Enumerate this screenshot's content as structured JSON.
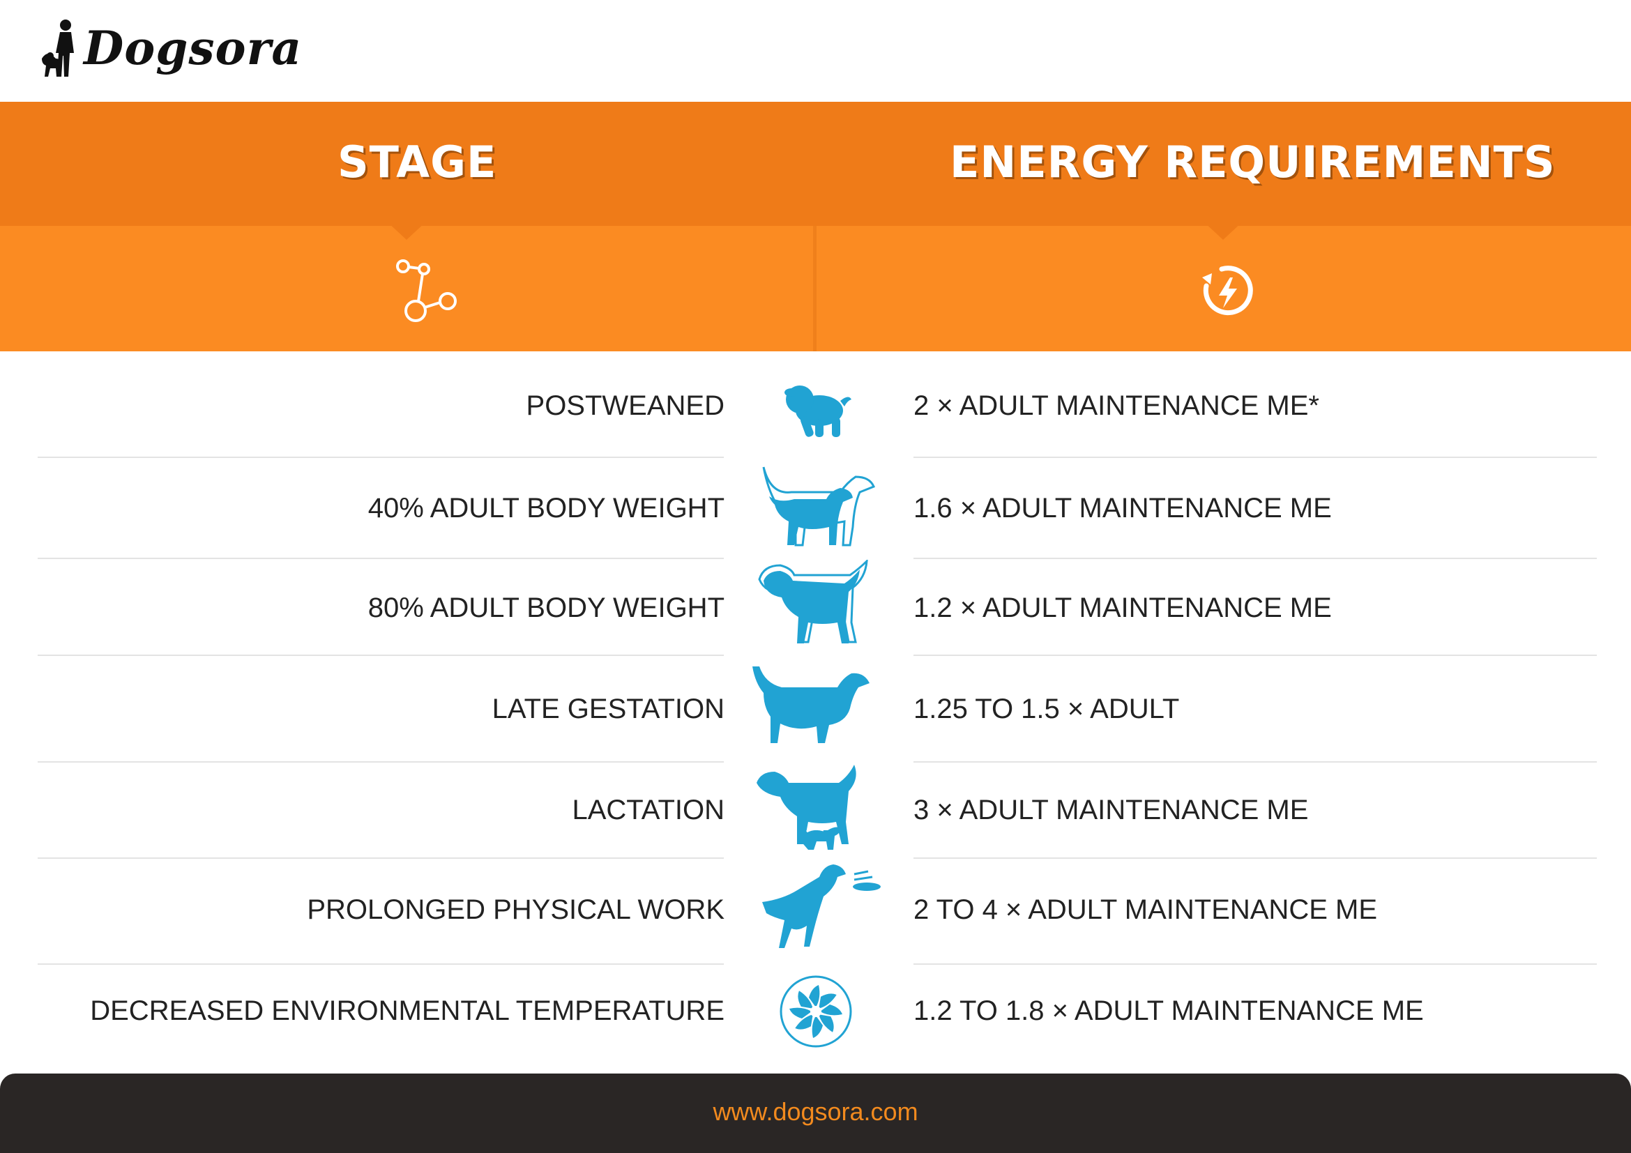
{
  "brand": {
    "name": "Dogsora"
  },
  "header": {
    "stage_title": "STAGE",
    "energy_title": "ENERGY REQUIREMENTS",
    "stage_icon": "stage-network-icon",
    "energy_icon": "energy-cycle-icon"
  },
  "colors": {
    "header_dark": "#ef7b18",
    "header_light": "#fb8b22",
    "icon_blue": "#21a3d3",
    "footer_bg": "#2a2625",
    "footer_text": "#f28a1e"
  },
  "rows": [
    {
      "stage": "POSTWEANED",
      "energy": "2 × ADULT MAINTENANCE ME*",
      "icon": "puppy-icon"
    },
    {
      "stage": "40% ADULT BODY WEIGHT",
      "energy": "1.6 × ADULT MAINTENANCE ME",
      "icon": "growing-dog-40-icon"
    },
    {
      "stage": "80% ADULT BODY WEIGHT",
      "energy": "1.2 × ADULT MAINTENANCE ME",
      "icon": "growing-dog-80-icon"
    },
    {
      "stage": "LATE GESTATION",
      "energy": "1.25 TO 1.5 × ADULT",
      "icon": "pregnant-dog-icon"
    },
    {
      "stage": "LACTATION",
      "energy": "3 × ADULT MAINTENANCE ME",
      "icon": "nursing-dog-icon"
    },
    {
      "stage": "PROLONGED PHYSICAL WORK",
      "energy": "2 TO 4 × ADULT MAINTENANCE ME",
      "icon": "jumping-dog-frisbee-icon"
    },
    {
      "stage": "DECREASED ENVIRONMENTAL TEMPERATURE",
      "energy": "1.2 TO 1.8 × ADULT MAINTENANCE ME",
      "icon": "cold-temperature-icon"
    }
  ],
  "footer": {
    "url": "www.dogsora.com"
  }
}
